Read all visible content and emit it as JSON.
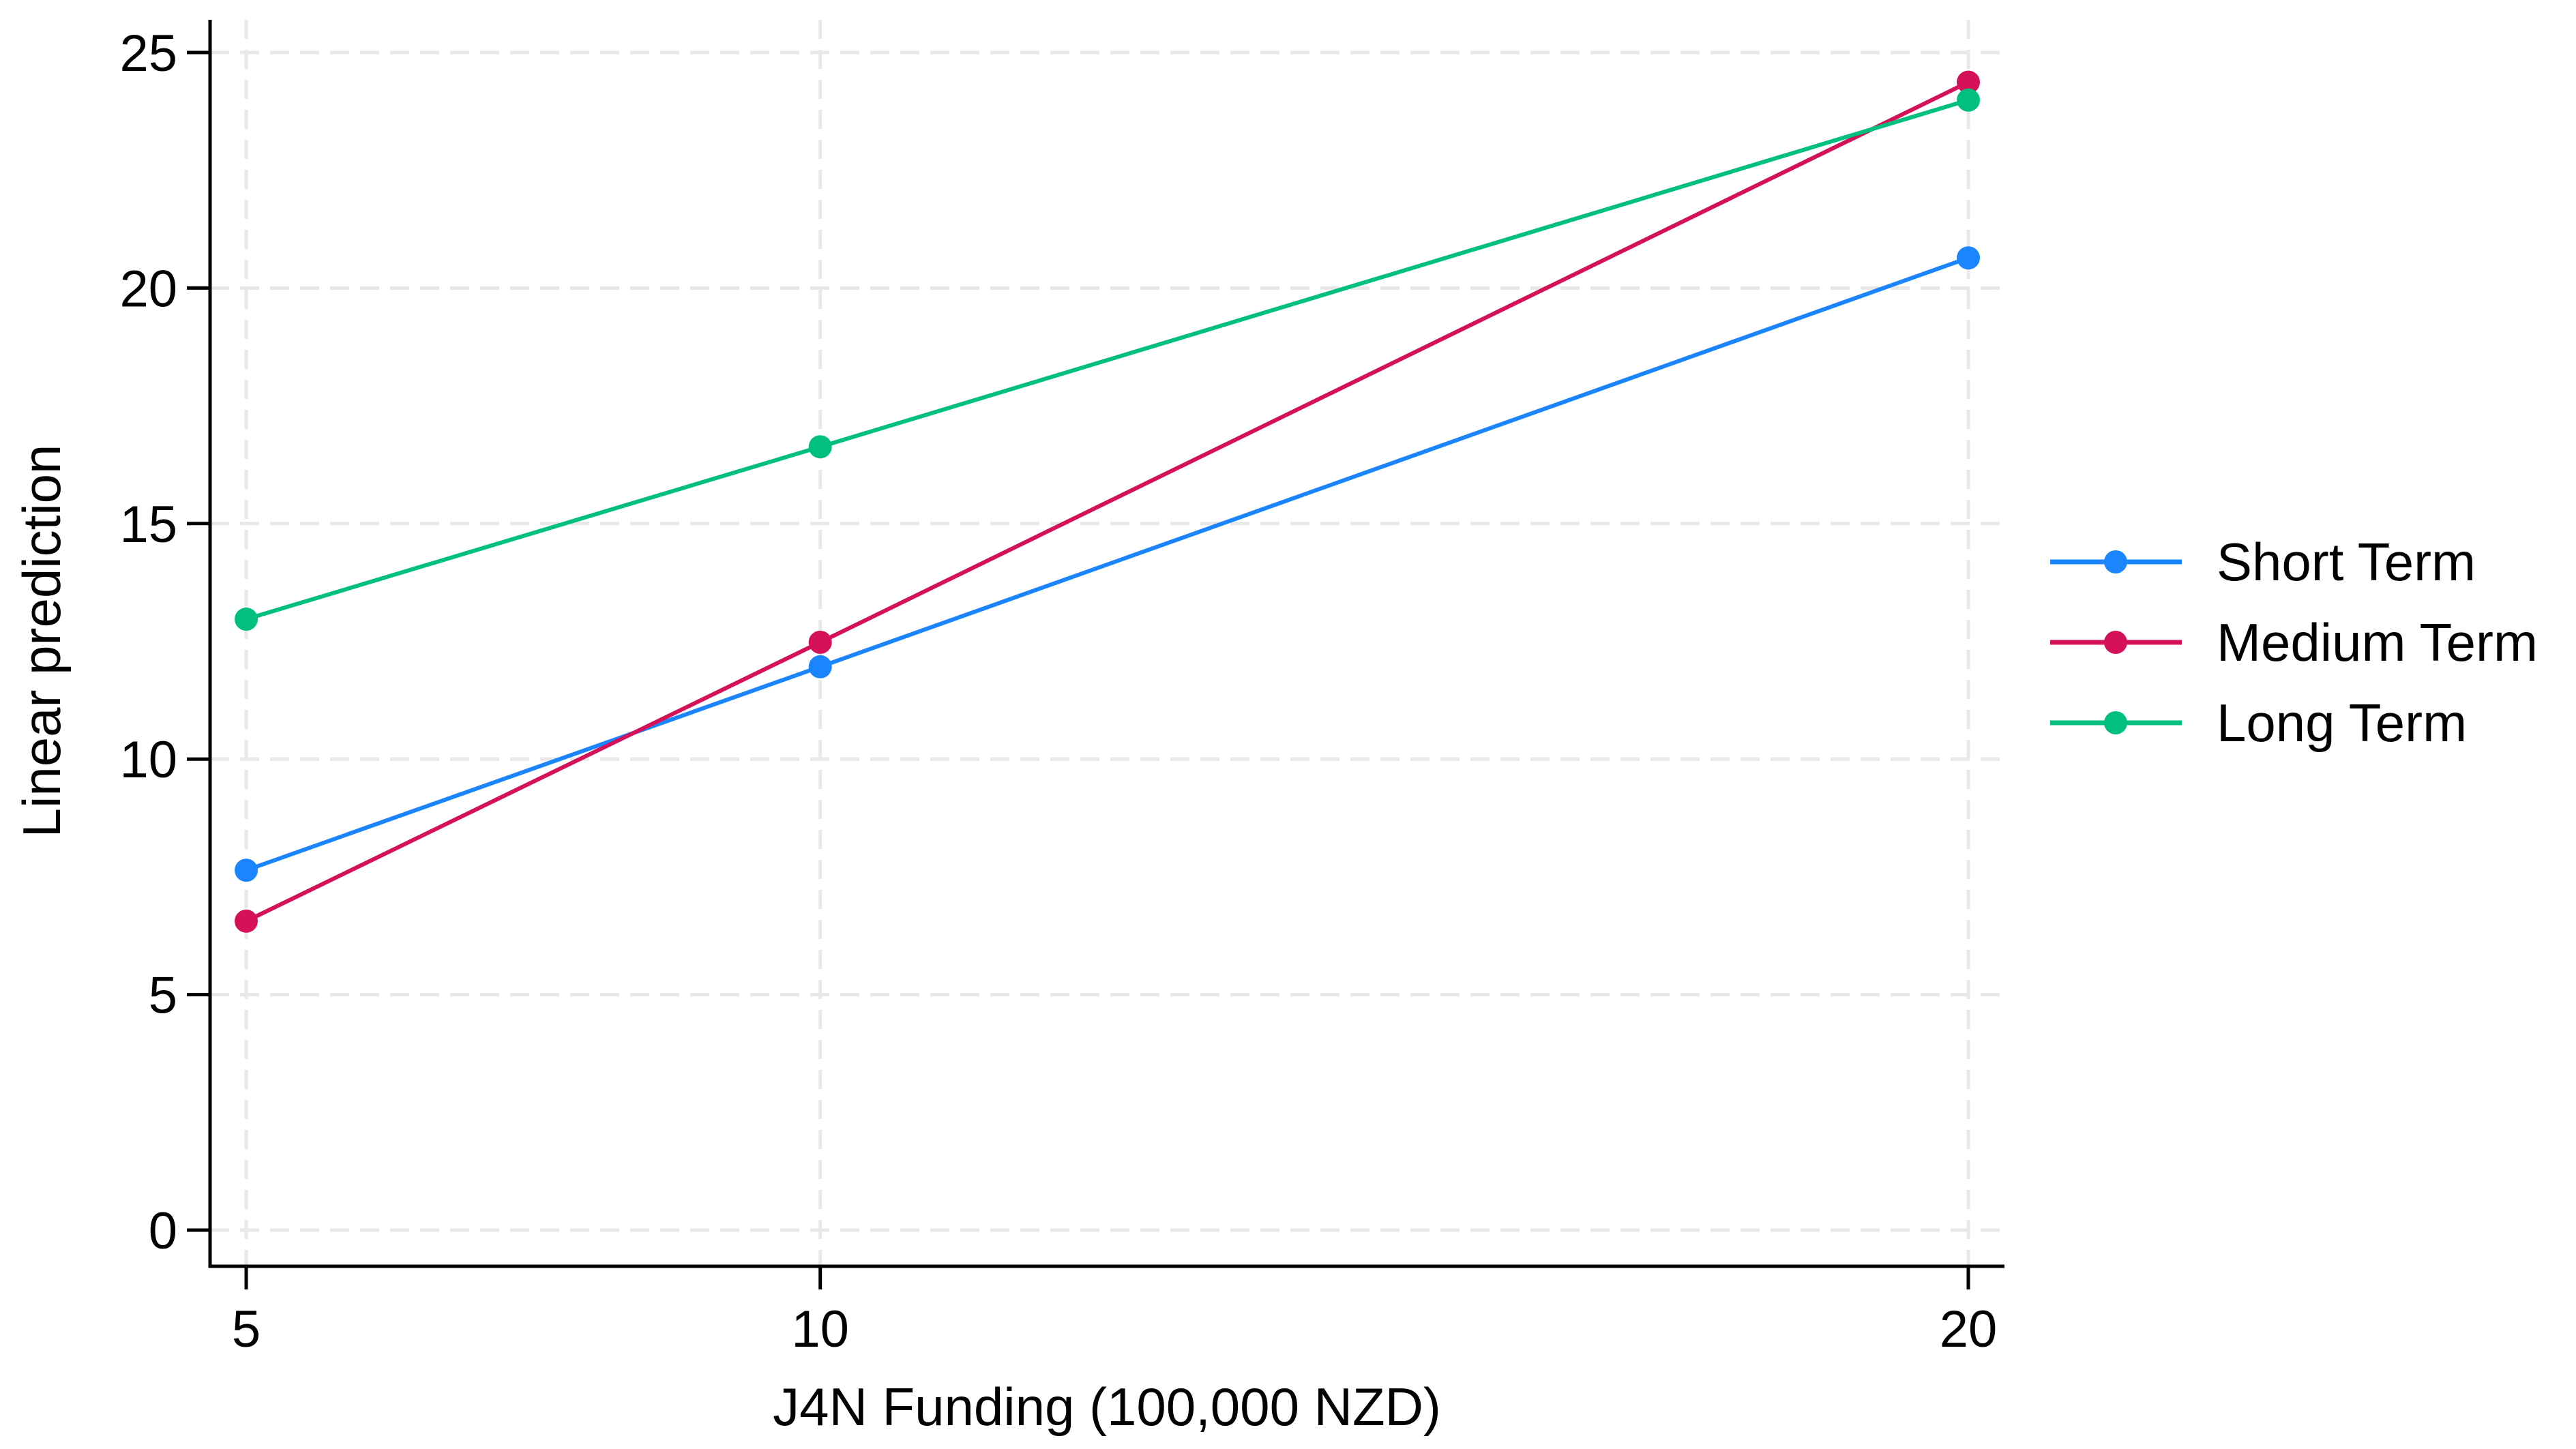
{
  "chart_data": {
    "type": "line",
    "title": "",
    "xlabel": "J4N Funding (100,000 NZD)",
    "ylabel": "Linear prediction",
    "x": [
      5,
      10,
      20
    ],
    "xticks": [
      "5",
      "10",
      "20"
    ],
    "yticks": [
      "0",
      "5",
      "10",
      "15",
      "20",
      "25"
    ],
    "xlim": [
      5,
      20
    ],
    "ylim": [
      0,
      25
    ],
    "grid": true,
    "legend_position": "right",
    "series": [
      {
        "name": "Short Term",
        "color": "#1a85ff",
        "values": [
          7.64,
          11.96,
          20.64
        ]
      },
      {
        "name": "Medium Term",
        "color": "#d41159",
        "values": [
          6.56,
          12.48,
          24.37
        ]
      },
      {
        "name": "Long Term",
        "color": "#00bf7f",
        "values": [
          12.97,
          16.63,
          23.99
        ]
      }
    ]
  }
}
